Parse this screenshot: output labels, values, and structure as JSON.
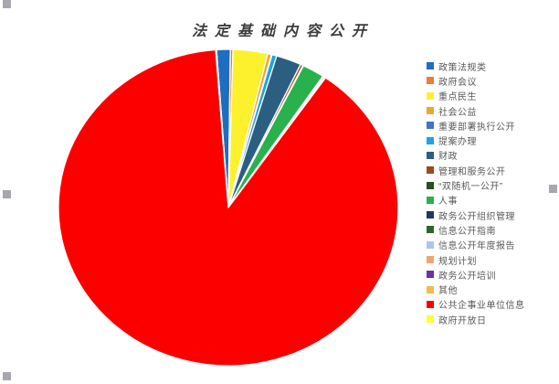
{
  "chart_data": {
    "type": "pie",
    "title": "法定基础内容公开",
    "legend_position": "right",
    "start_angle_deg": -4,
    "grid": false,
    "series": [
      {
        "name": "政策法规类",
        "value": 1.3,
        "color": "#1d6ec1"
      },
      {
        "name": "政府会议",
        "value": 0.25,
        "color": "#ed7d31"
      },
      {
        "name": "重点民生",
        "value": 3.3,
        "color": "#fdf12e"
      },
      {
        "name": "社会公益",
        "value": 0.35,
        "color": "#eba832"
      },
      {
        "name": "重要部署执行公开",
        "value": 0.06,
        "color": "#4472c4"
      },
      {
        "name": "提案办理",
        "value": 0.45,
        "color": "#1ca3e8"
      },
      {
        "name": "财政",
        "value": 2.4,
        "color": "#2a5f82"
      },
      {
        "name": "管理和服务公开",
        "value": 0.25,
        "color": "#9c4b19"
      },
      {
        "name": "“双随机一公开”",
        "value": 0.06,
        "color": "#27511e"
      },
      {
        "name": "人事",
        "value": 2.1,
        "color": "#28b14c"
      },
      {
        "name": "政务公开组织管理",
        "value": 0.05,
        "color": "#1f3864"
      },
      {
        "name": "信息公开指南",
        "value": 0.05,
        "color": "#33632c"
      },
      {
        "name": "信息公开年度报告",
        "value": 0.05,
        "color": "#a9c7e9"
      },
      {
        "name": "规划计划",
        "value": 0.05,
        "color": "#f2a571"
      },
      {
        "name": "政务公开培训",
        "value": 0.05,
        "color": "#7030a0"
      },
      {
        "name": "其他",
        "value": 0.05,
        "color": "#efbd4e"
      },
      {
        "name": "公共企事业单位信息",
        "value": 89.2,
        "color": "#fc0000"
      },
      {
        "name": "政府开放日",
        "value": 0.08,
        "color": "#ffff33"
      }
    ],
    "colors": {
      "background": "#ffffff",
      "title_text": "#3d3d3d",
      "legend_text": "#595959",
      "slice_border": "#ffffff",
      "selection_handle": "#a6a8ad"
    }
  }
}
